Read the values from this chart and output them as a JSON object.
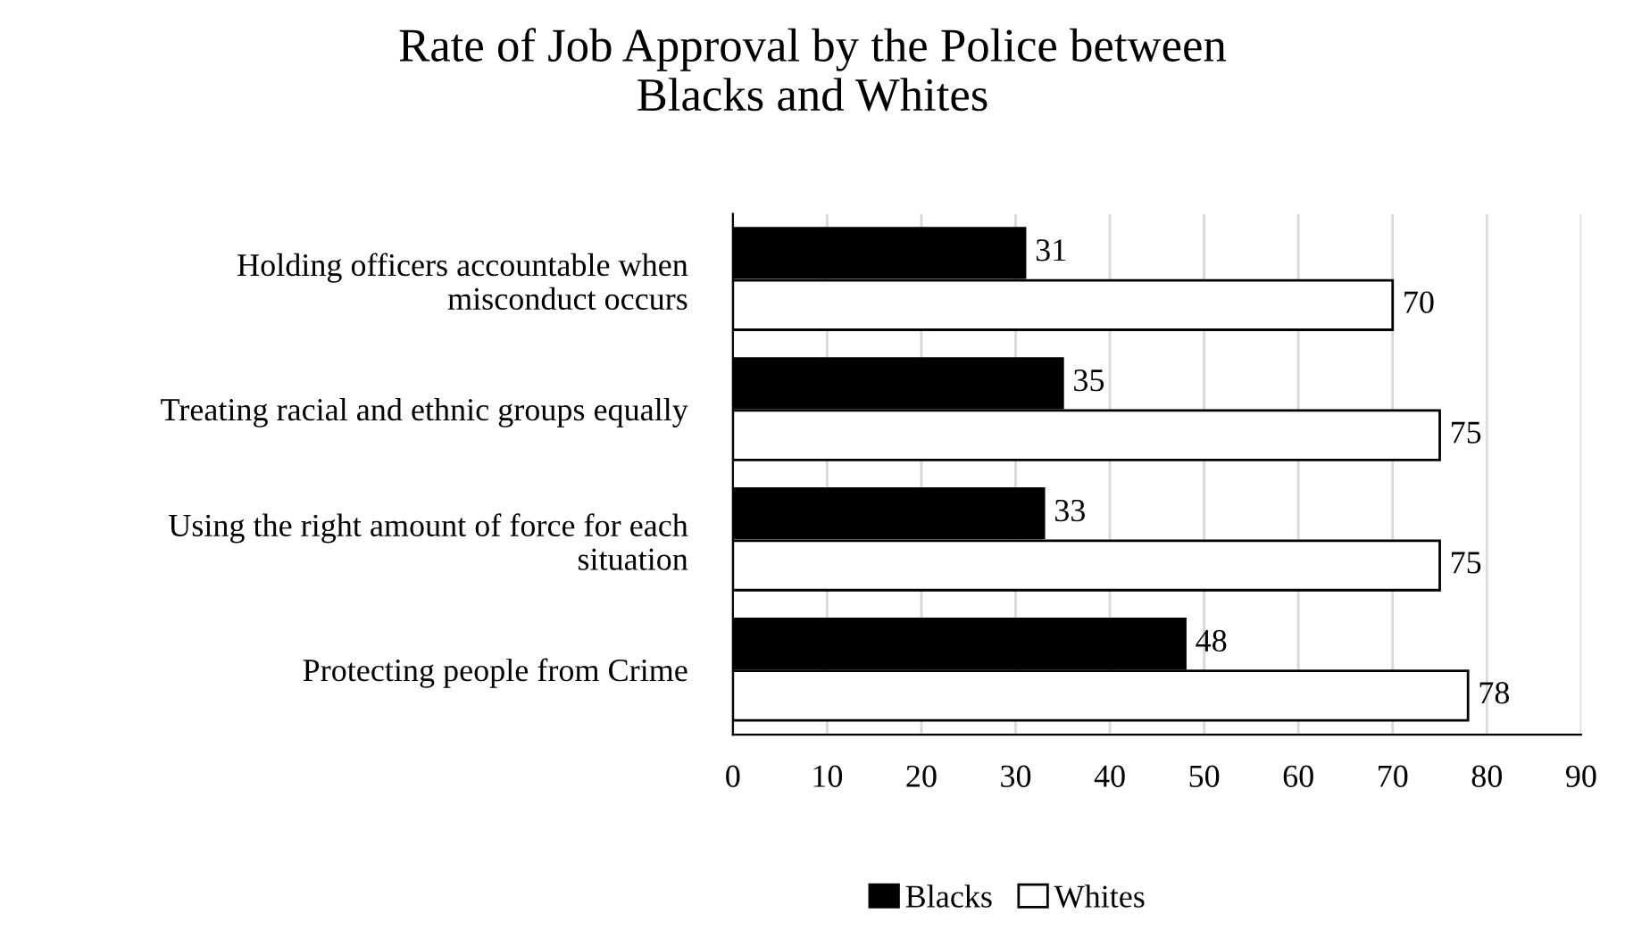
{
  "chart_data": {
    "type": "bar",
    "orientation": "horizontal",
    "title": "Rate of Job Approval by the Police between\nBlacks and Whites",
    "categories": [
      "Holding officers accountable when\nmisconduct occurs",
      "Treating racial and ethnic groups equally",
      "Using the right amount of force for each\nsituation",
      "Protecting people from Crime"
    ],
    "series": [
      {
        "name": "Blacks",
        "color": "#000000",
        "values": [
          31,
          35,
          33,
          48
        ]
      },
      {
        "name": "Whites",
        "color": "#ffffff",
        "values": [
          70,
          75,
          75,
          78
        ]
      }
    ],
    "xlim": [
      0,
      90
    ],
    "xticks": [
      0,
      10,
      20,
      30,
      40,
      50,
      60,
      70,
      80,
      90
    ],
    "grid": "x",
    "legend": "bottom",
    "data_labels": true
  }
}
